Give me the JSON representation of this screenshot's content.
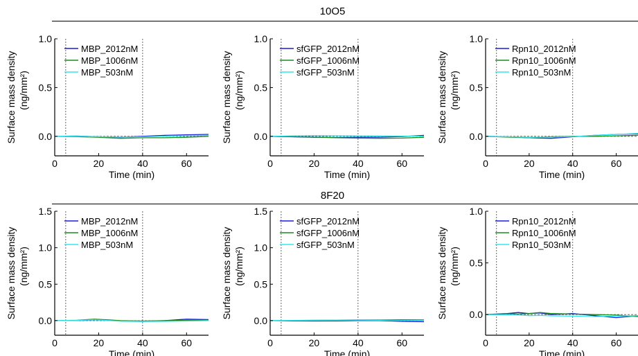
{
  "groups": [
    {
      "title": "10O5"
    },
    {
      "title": "8F20"
    }
  ],
  "colors": {
    "high": "#1a1adc",
    "mid": "#1b8a1b",
    "low": "#33e6f0",
    "marker": "#555555"
  },
  "chart_data": [
    {
      "type": "line",
      "group": "10O5",
      "panel": "MBP",
      "xlabel": "Time (min)",
      "ylabel": "Surface mass density",
      "ylabel2": "(ng/mm²)",
      "xlim": [
        0,
        70
      ],
      "ylim": [
        -0.2,
        1.0
      ],
      "xticks": [
        0,
        20,
        40,
        60
      ],
      "yticks": [
        0.0,
        0.5,
        1.0
      ],
      "ytick_labels": [
        "0.0",
        "0.5",
        "1.0"
      ],
      "markers": [
        5,
        40
      ],
      "legend": "top-left",
      "series": [
        {
          "name": "MBP_2012nM",
          "color": "high",
          "x": [
            0,
            10,
            20,
            30,
            40,
            50,
            60,
            70
          ],
          "y": [
            0,
            0.003,
            -0.005,
            -0.01,
            0.0,
            0.01,
            0.015,
            0.02
          ]
        },
        {
          "name": "MBP_1006nM",
          "color": "mid",
          "x": [
            0,
            10,
            20,
            30,
            40,
            50,
            60,
            70
          ],
          "y": [
            0,
            -0.003,
            -0.01,
            -0.02,
            -0.015,
            -0.015,
            -0.01,
            0.0
          ]
        },
        {
          "name": "MBP_503nM",
          "color": "low",
          "x": [
            0,
            10,
            20,
            30,
            40,
            50,
            60,
            70
          ],
          "y": [
            0,
            0.002,
            -0.004,
            -0.008,
            -0.005,
            0.002,
            0.008,
            0.01
          ]
        }
      ]
    },
    {
      "type": "line",
      "group": "10O5",
      "panel": "sfGFP",
      "xlabel": "Time (min)",
      "ylabel": "Surface mass density",
      "ylabel2": "(ng/mm²)",
      "xlim": [
        0,
        70
      ],
      "ylim": [
        -0.2,
        1.0
      ],
      "xticks": [
        0,
        20,
        40,
        60
      ],
      "yticks": [
        0.0,
        0.5,
        1.0
      ],
      "ytick_labels": [
        "0.0",
        "0.5",
        "1.0"
      ],
      "markers": [
        5,
        40
      ],
      "legend": "top-left",
      "series": [
        {
          "name": "sfGFP_2012nM",
          "color": "high",
          "x": [
            0,
            10,
            20,
            30,
            40,
            50,
            60,
            70
          ],
          "y": [
            0,
            -0.005,
            -0.01,
            -0.012,
            -0.01,
            -0.008,
            -0.002,
            0.01
          ]
        },
        {
          "name": "sfGFP_1006nM",
          "color": "mid",
          "x": [
            0,
            10,
            20,
            30,
            40,
            50,
            60,
            70
          ],
          "y": [
            0,
            -0.003,
            -0.008,
            -0.015,
            -0.018,
            -0.02,
            -0.018,
            -0.01
          ]
        },
        {
          "name": "sfGFP_503nM",
          "color": "low",
          "x": [
            0,
            10,
            20,
            30,
            40,
            50,
            60,
            70
          ],
          "y": [
            0,
            0.005,
            0.008,
            0.006,
            0.005,
            0.004,
            0.003,
            0.002
          ]
        }
      ]
    },
    {
      "type": "line",
      "group": "10O5",
      "panel": "Rpn10",
      "xlabel": "Time (min)",
      "ylabel": "Surface mass density",
      "ylabel2": "(ng/mm²)",
      "xlim": [
        0,
        70
      ],
      "ylim": [
        -0.2,
        1.0
      ],
      "xticks": [
        0,
        20,
        40,
        60
      ],
      "yticks": [
        0.0,
        0.5,
        1.0
      ],
      "ytick_labels": [
        "0.0",
        "0.5",
        "1.0"
      ],
      "markers": [
        5,
        40
      ],
      "legend": "top-left",
      "series": [
        {
          "name": "Rpn10_2012nM",
          "color": "high",
          "x": [
            0,
            10,
            20,
            30,
            40,
            50,
            60,
            70
          ],
          "y": [
            0,
            -0.005,
            -0.015,
            -0.02,
            -0.005,
            0.01,
            0.02,
            0.025
          ]
        },
        {
          "name": "Rpn10_1006nM",
          "color": "mid",
          "x": [
            0,
            10,
            20,
            30,
            40,
            50,
            60,
            70
          ],
          "y": [
            0,
            -0.008,
            -0.015,
            -0.005,
            0.0,
            0.0,
            0.005,
            0.01
          ]
        },
        {
          "name": "Rpn10_503nM",
          "color": "low",
          "x": [
            0,
            10,
            20,
            30,
            40,
            50,
            60,
            70
          ],
          "y": [
            0,
            -0.004,
            -0.01,
            -0.008,
            -0.002,
            0.01,
            0.02,
            0.03
          ]
        }
      ]
    },
    {
      "type": "line",
      "group": "8F20",
      "panel": "MBP",
      "xlabel": "Time (min)",
      "ylabel": "Surface mass density",
      "ylabel2": "(ng/mm²)",
      "xlim": [
        0,
        70
      ],
      "ylim": [
        -0.2,
        1.5
      ],
      "xticks": [
        0,
        20,
        40,
        60
      ],
      "yticks": [
        0.0,
        0.5,
        1.0,
        1.5
      ],
      "ytick_labels": [
        "0.0",
        "0.5",
        "1.0",
        "1.5"
      ],
      "markers": [
        5,
        40
      ],
      "legend": "top-left",
      "series": [
        {
          "name": "MBP_2012nM",
          "color": "high",
          "x": [
            0,
            10,
            18,
            25,
            30,
            40,
            50,
            60,
            70
          ],
          "y": [
            0,
            0.0,
            0.01,
            0.005,
            -0.005,
            -0.01,
            0.0,
            0.02,
            0.015
          ]
        },
        {
          "name": "MBP_1006nM",
          "color": "mid",
          "x": [
            0,
            10,
            18,
            25,
            30,
            40,
            50,
            60,
            70
          ],
          "y": [
            0,
            0.005,
            0.02,
            0.01,
            0.0,
            -0.005,
            0.0,
            0.005,
            0.008
          ]
        },
        {
          "name": "MBP_503nM",
          "color": "low",
          "x": [
            0,
            10,
            18,
            25,
            30,
            40,
            50,
            60,
            70
          ],
          "y": [
            0,
            0.002,
            0.012,
            0.0,
            -0.008,
            -0.012,
            -0.01,
            -0.005,
            0.0
          ]
        }
      ]
    },
    {
      "type": "line",
      "group": "8F20",
      "panel": "sfGFP",
      "xlabel": "Time (min)",
      "ylabel": "Surface mass density",
      "ylabel2": "(ng/mm²)",
      "xlim": [
        0,
        70
      ],
      "ylim": [
        -0.2,
        1.5
      ],
      "xticks": [
        0,
        20,
        40,
        60
      ],
      "yticks": [
        0.0,
        0.5,
        1.0,
        1.5
      ],
      "ytick_labels": [
        "0.0",
        "0.5",
        "1.0",
        "1.5"
      ],
      "markers": [
        5,
        40
      ],
      "legend": "top-left",
      "series": [
        {
          "name": "sfGFP_2012nM",
          "color": "high",
          "x": [
            0,
            10,
            20,
            30,
            40,
            50,
            60,
            70
          ],
          "y": [
            0,
            -0.003,
            -0.005,
            -0.003,
            0.0,
            0.0,
            -0.01,
            -0.015
          ]
        },
        {
          "name": "sfGFP_1006nM",
          "color": "mid",
          "x": [
            0,
            10,
            20,
            30,
            40,
            50,
            60,
            70
          ],
          "y": [
            0,
            0.003,
            0.005,
            0.008,
            0.01,
            0.01,
            0.012,
            0.01
          ]
        },
        {
          "name": "sfGFP_503nM",
          "color": "low",
          "x": [
            0,
            10,
            20,
            30,
            40,
            50,
            60,
            70
          ],
          "y": [
            0,
            0.002,
            0.004,
            0.006,
            0.008,
            0.005,
            0.003,
            0.0
          ]
        }
      ]
    },
    {
      "type": "line",
      "group": "8F20",
      "panel": "Rpn10",
      "xlabel": "Time (min)",
      "ylabel": "Surface mass density",
      "ylabel2": "(ng/mm²)",
      "xlim": [
        0,
        70
      ],
      "ylim": [
        -0.2,
        1.0
      ],
      "xticks": [
        0,
        20,
        40,
        60
      ],
      "yticks": [
        0.0,
        0.5,
        1.0
      ],
      "ytick_labels": [
        "0.0",
        "0.5",
        "1.0"
      ],
      "markers": [
        5,
        40
      ],
      "legend": "top-left",
      "series": [
        {
          "name": "Rpn10_2012nM",
          "color": "high",
          "x": [
            0,
            10,
            15,
            20,
            25,
            30,
            40,
            50,
            60,
            70
          ],
          "y": [
            0,
            0.01,
            0.02,
            0.01,
            0.015,
            0.0,
            0.01,
            -0.01,
            -0.03,
            -0.01
          ]
        },
        {
          "name": "Rpn10_1006nM",
          "color": "mid",
          "x": [
            0,
            10,
            15,
            20,
            25,
            30,
            40,
            50,
            60,
            70
          ],
          "y": [
            0,
            0.008,
            0.005,
            0.01,
            0.02,
            0.01,
            0.005,
            0.0,
            -0.005,
            -0.02
          ]
        },
        {
          "name": "Rpn10_503nM",
          "color": "low",
          "x": [
            0,
            10,
            15,
            20,
            25,
            30,
            40,
            50,
            60,
            70
          ],
          "y": [
            0,
            -0.003,
            -0.005,
            -0.01,
            -0.008,
            -0.012,
            -0.015,
            -0.02,
            -0.015,
            -0.01
          ]
        }
      ]
    }
  ]
}
